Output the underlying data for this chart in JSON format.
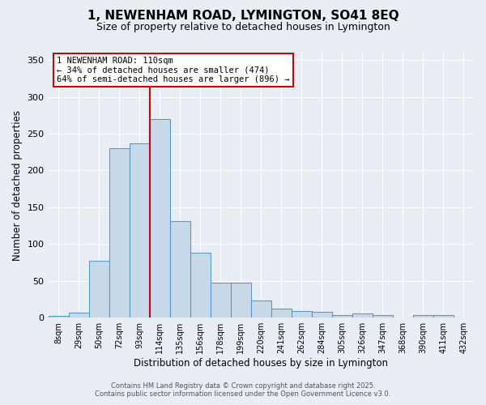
{
  "title": "1, NEWENHAM ROAD, LYMINGTON, SO41 8EQ",
  "subtitle": "Size of property relative to detached houses in Lymington",
  "xlabel": "Distribution of detached houses by size in Lymington",
  "ylabel": "Number of detached properties",
  "categories": [
    "8sqm",
    "29sqm",
    "50sqm",
    "72sqm",
    "93sqm",
    "114sqm",
    "135sqm",
    "156sqm",
    "178sqm",
    "199sqm",
    "220sqm",
    "241sqm",
    "262sqm",
    "284sqm",
    "305sqm",
    "326sqm",
    "347sqm",
    "368sqm",
    "390sqm",
    "411sqm",
    "432sqm"
  ],
  "values": [
    2,
    7,
    77,
    230,
    237,
    270,
    131,
    88,
    48,
    47,
    23,
    12,
    9,
    8,
    4,
    6,
    4,
    0,
    3,
    3,
    0
  ],
  "bar_color": "#c8daea",
  "bar_edge_color": "#5a9ac8",
  "vline_x": 4.5,
  "property_label": "1 NEWENHAM ROAD: 110sqm",
  "annotation_line1": "← 34% of detached houses are smaller (474)",
  "annotation_line2": "64% of semi-detached houses are larger (896) →",
  "annotation_box_color": "#ffffff",
  "annotation_box_edge": "#cc0000",
  "vline_color": "#cc0000",
  "ylim": [
    0,
    360
  ],
  "yticks": [
    0,
    50,
    100,
    150,
    200,
    250,
    300,
    350
  ],
  "background_color": "#e8eef4",
  "footer_line1": "Contains HM Land Registry data © Crown copyright and database right 2025.",
  "footer_line2": "Contains public sector information licensed under the Open Government Licence v3.0."
}
